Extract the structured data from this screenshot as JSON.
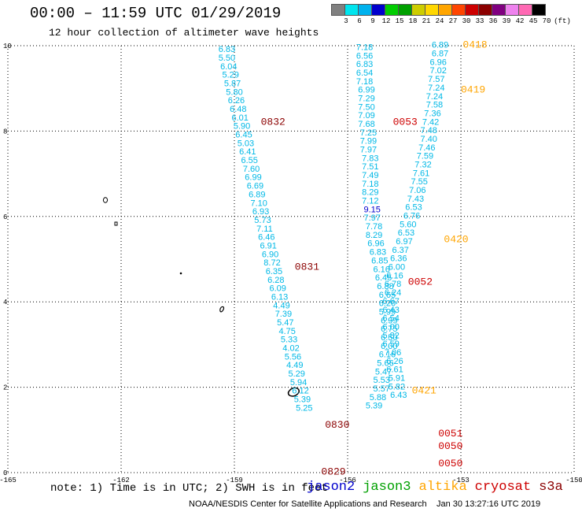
{
  "title": "00:00 – 11:59 UTC 01/29/2019",
  "subtitle": "12 hour collection of altimeter wave heights",
  "legend": {
    "unit_label": "(ft)",
    "colors": [
      "#808080",
      "#00e5ee",
      "#00b2ee",
      "#0000cd",
      "#00cd00",
      "#00a000",
      "#cdcd00",
      "#ffd700",
      "#ffa500",
      "#ff4500",
      "#cd0000",
      "#8b0000",
      "#800080",
      "#ee82ee",
      "#ff69b4",
      "#000000"
    ],
    "ticks": [
      "3",
      "6",
      "9",
      "12",
      "15",
      "18",
      "21",
      "24",
      "27",
      "30",
      "33",
      "36",
      "39",
      "42",
      "45",
      "70"
    ]
  },
  "axes": {
    "x": {
      "min": -165,
      "max": -150,
      "tick_labels": [
        "-165",
        "-162",
        "-159",
        "-156",
        "-153",
        "-150"
      ],
      "tick_values": [
        -165,
        -162,
        -159,
        -156,
        -153,
        -150
      ]
    },
    "y": {
      "min": 0,
      "max": 10,
      "tick_labels": [
        "0",
        "2",
        "4",
        "6",
        "8",
        "10"
      ],
      "tick_values": [
        0,
        2,
        4,
        6,
        8,
        10
      ]
    }
  },
  "passes": [
    {
      "label": "0832",
      "color": "#8b0000",
      "lon": -158.3,
      "lat": 8.15
    },
    {
      "label": "0831",
      "color": "#8b0000",
      "lon": -157.4,
      "lat": 4.75
    },
    {
      "label": "0830",
      "color": "#8b0000",
      "lon": -156.6,
      "lat": 1.05
    },
    {
      "label": "0829",
      "color": "#8b0000",
      "lon": -156.7,
      "lat": -0.05
    },
    {
      "label": "0053",
      "color": "#cd0000",
      "lon": -154.8,
      "lat": 8.15
    },
    {
      "label": "0052",
      "color": "#cd0000",
      "lon": -154.4,
      "lat": 4.4
    },
    {
      "label": "0051",
      "color": "#cd0000",
      "lon": -153.6,
      "lat": 0.85
    },
    {
      "label": "0050",
      "color": "#cd0000",
      "lon": -153.6,
      "lat": 0.55
    },
    {
      "label": "0050",
      "color": "#cd0000",
      "lon": -153.6,
      "lat": 0.15
    },
    {
      "label": "0418",
      "color": "#ffa500",
      "lon": -152.95,
      "lat": 9.95
    },
    {
      "label": "0419",
      "color": "#ffa500",
      "lon": -153.0,
      "lat": 8.9
    },
    {
      "label": "0420",
      "color": "#ffa500",
      "lon": -153.45,
      "lat": 5.4
    },
    {
      "label": "0421",
      "color": "#ffa500",
      "lon": -154.3,
      "lat": 1.85
    }
  ],
  "tracks": [
    {
      "name": "track-west",
      "color": "#00b8e6",
      "points": [
        {
          "lon": -159.2,
          "lat": 9.85,
          "v": "6.83"
        },
        {
          "lon": -159.2,
          "lat": 9.65,
          "v": "5.50"
        },
        {
          "lon": -159.15,
          "lat": 9.45,
          "v": "6.04"
        },
        {
          "lon": -159.1,
          "lat": 9.25,
          "v": "5.29"
        },
        {
          "lon": -159.05,
          "lat": 9.05,
          "v": "5.87"
        },
        {
          "lon": -159.0,
          "lat": 8.85,
          "v": "5.80"
        },
        {
          "lon": -158.95,
          "lat": 8.65,
          "v": "6.26"
        },
        {
          "lon": -158.9,
          "lat": 8.45,
          "v": "6.48"
        },
        {
          "lon": -158.85,
          "lat": 8.25,
          "v": "6.01"
        },
        {
          "lon": -158.8,
          "lat": 8.05,
          "v": "5.90"
        },
        {
          "lon": -158.75,
          "lat": 7.85,
          "v": "6.45"
        },
        {
          "lon": -158.7,
          "lat": 7.65,
          "v": "5.03"
        },
        {
          "lon": -158.65,
          "lat": 7.45,
          "v": "6.41"
        },
        {
          "lon": -158.6,
          "lat": 7.25,
          "v": "6.55"
        },
        {
          "lon": -158.55,
          "lat": 7.05,
          "v": "7.60"
        },
        {
          "lon": -158.5,
          "lat": 6.85,
          "v": "6.99"
        },
        {
          "lon": -158.45,
          "lat": 6.65,
          "v": "6.69"
        },
        {
          "lon": -158.4,
          "lat": 6.45,
          "v": "6.89"
        },
        {
          "lon": -158.35,
          "lat": 6.25,
          "v": "7.10"
        },
        {
          "lon": -158.3,
          "lat": 6.05,
          "v": "6.93"
        },
        {
          "lon": -158.25,
          "lat": 5.85,
          "v": "5.73"
        },
        {
          "lon": -158.2,
          "lat": 5.65,
          "v": "7.11"
        },
        {
          "lon": -158.15,
          "lat": 5.45,
          "v": "6.46"
        },
        {
          "lon": -158.1,
          "lat": 5.25,
          "v": "6.91"
        },
        {
          "lon": -158.05,
          "lat": 5.05,
          "v": "6.90"
        },
        {
          "lon": -158.0,
          "lat": 4.85,
          "v": "8.72"
        },
        {
          "lon": -157.95,
          "lat": 4.65,
          "v": "6.35"
        },
        {
          "lon": -157.9,
          "lat": 4.45,
          "v": "6.28"
        },
        {
          "lon": -157.85,
          "lat": 4.25,
          "v": "6.09"
        },
        {
          "lon": -157.8,
          "lat": 4.05,
          "v": "6.13"
        },
        {
          "lon": -157.75,
          "lat": 3.85,
          "v": "4.49"
        },
        {
          "lon": -157.7,
          "lat": 3.65,
          "v": "7.39"
        },
        {
          "lon": -157.65,
          "lat": 3.45,
          "v": "5.47"
        },
        {
          "lon": -157.6,
          "lat": 3.25,
          "v": "4.75"
        },
        {
          "lon": -157.55,
          "lat": 3.05,
          "v": "5.33"
        },
        {
          "lon": -157.5,
          "lat": 2.85,
          "v": "4.02"
        },
        {
          "lon": -157.45,
          "lat": 2.65,
          "v": "5.56"
        },
        {
          "lon": -157.4,
          "lat": 2.45,
          "v": "4.49"
        },
        {
          "lon": -157.35,
          "lat": 2.25,
          "v": "5.29"
        },
        {
          "lon": -157.3,
          "lat": 2.05,
          "v": "5.94"
        },
        {
          "lon": -157.25,
          "lat": 1.85,
          "v": "6.12"
        },
        {
          "lon": -157.2,
          "lat": 1.65,
          "v": "5.39"
        },
        {
          "lon": -157.15,
          "lat": 1.45,
          "v": "5.25"
        }
      ]
    },
    {
      "name": "track-middle",
      "color": "#00b8e6",
      "points": [
        {
          "lon": -155.55,
          "lat": 9.9,
          "v": "7.18"
        },
        {
          "lon": -155.55,
          "lat": 9.7,
          "v": "6.56"
        },
        {
          "lon": -155.55,
          "lat": 9.5,
          "v": "6.83"
        },
        {
          "lon": -155.55,
          "lat": 9.3,
          "v": "6.54"
        },
        {
          "lon": -155.55,
          "lat": 9.1,
          "v": "7.18"
        },
        {
          "lon": -155.5,
          "lat": 8.9,
          "v": "6.99"
        },
        {
          "lon": -155.5,
          "lat": 8.7,
          "v": "7.29"
        },
        {
          "lon": -155.5,
          "lat": 8.5,
          "v": "7.50"
        },
        {
          "lon": -155.5,
          "lat": 8.3,
          "v": "7.09"
        },
        {
          "lon": -155.5,
          "lat": 8.1,
          "v": "7.68"
        },
        {
          "lon": -155.45,
          "lat": 7.9,
          "v": "7.25"
        },
        {
          "lon": -155.45,
          "lat": 7.7,
          "v": "7.99"
        },
        {
          "lon": -155.45,
          "lat": 7.5,
          "v": "7.97"
        },
        {
          "lon": -155.4,
          "lat": 7.3,
          "v": "7.83"
        },
        {
          "lon": -155.4,
          "lat": 7.1,
          "v": "7.51"
        },
        {
          "lon": -155.4,
          "lat": 6.9,
          "v": "7.49"
        },
        {
          "lon": -155.4,
          "lat": 6.7,
          "v": "7.18"
        },
        {
          "lon": -155.4,
          "lat": 6.5,
          "v": "8.29"
        },
        {
          "lon": -155.4,
          "lat": 6.3,
          "v": "7.12"
        },
        {
          "lon": -155.35,
          "lat": 6.1,
          "v": "9.15",
          "color": "#0000cd"
        },
        {
          "lon": -155.35,
          "lat": 5.9,
          "v": "7.97"
        },
        {
          "lon": -155.3,
          "lat": 5.7,
          "v": "7.78"
        },
        {
          "lon": -155.3,
          "lat": 5.5,
          "v": "8.29"
        },
        {
          "lon": -155.25,
          "lat": 5.3,
          "v": "6.96"
        },
        {
          "lon": -155.2,
          "lat": 5.1,
          "v": "6.83"
        },
        {
          "lon": -155.15,
          "lat": 4.9,
          "v": "6.85"
        },
        {
          "lon": -155.1,
          "lat": 4.7,
          "v": "6.16"
        },
        {
          "lon": -155.05,
          "lat": 4.5,
          "v": "6.45"
        },
        {
          "lon": -155.0,
          "lat": 4.3,
          "v": "6.88"
        },
        {
          "lon": -154.95,
          "lat": 4.1,
          "v": "6.65"
        },
        {
          "lon": -154.95,
          "lat": 3.9,
          "v": "6.20"
        },
        {
          "lon": -154.95,
          "lat": 3.7,
          "v": "5.99"
        },
        {
          "lon": -154.9,
          "lat": 3.5,
          "v": "6.99"
        },
        {
          "lon": -154.9,
          "lat": 3.3,
          "v": "6.75"
        },
        {
          "lon": -154.9,
          "lat": 3.1,
          "v": "6.50"
        },
        {
          "lon": -154.9,
          "lat": 2.9,
          "v": "6.00"
        },
        {
          "lon": -154.95,
          "lat": 2.7,
          "v": "6.16"
        },
        {
          "lon": -155.0,
          "lat": 2.5,
          "v": "5.66"
        },
        {
          "lon": -155.05,
          "lat": 2.3,
          "v": "5.47"
        },
        {
          "lon": -155.1,
          "lat": 2.1,
          "v": "5.53"
        },
        {
          "lon": -155.1,
          "lat": 1.9,
          "v": "5.57"
        },
        {
          "lon": -155.2,
          "lat": 1.7,
          "v": "5.88"
        },
        {
          "lon": -155.3,
          "lat": 1.5,
          "v": "5.39"
        }
      ]
    },
    {
      "name": "track-east",
      "color": "#00b8e6",
      "points": [
        {
          "lon": -153.55,
          "lat": 9.95,
          "v": "6.89"
        },
        {
          "lon": -153.55,
          "lat": 9.75,
          "v": "6.87"
        },
        {
          "lon": -153.6,
          "lat": 9.55,
          "v": "6.96"
        },
        {
          "lon": -153.6,
          "lat": 9.35,
          "v": "7.02"
        },
        {
          "lon": -153.65,
          "lat": 9.15,
          "v": "7.57"
        },
        {
          "lon": -153.65,
          "lat": 8.95,
          "v": "7.24"
        },
        {
          "lon": -153.7,
          "lat": 8.75,
          "v": "7.24"
        },
        {
          "lon": -153.7,
          "lat": 8.55,
          "v": "7.58"
        },
        {
          "lon": -153.75,
          "lat": 8.35,
          "v": "7.36"
        },
        {
          "lon": -153.8,
          "lat": 8.15,
          "v": "7.42"
        },
        {
          "lon": -153.85,
          "lat": 7.95,
          "v": "7.48"
        },
        {
          "lon": -153.85,
          "lat": 7.75,
          "v": "7.40"
        },
        {
          "lon": -153.9,
          "lat": 7.55,
          "v": "7.46"
        },
        {
          "lon": -153.95,
          "lat": 7.35,
          "v": "7.59"
        },
        {
          "lon": -154.0,
          "lat": 7.15,
          "v": "7.32"
        },
        {
          "lon": -154.05,
          "lat": 6.95,
          "v": "7.61"
        },
        {
          "lon": -154.1,
          "lat": 6.75,
          "v": "7.55"
        },
        {
          "lon": -154.15,
          "lat": 6.55,
          "v": "7.06"
        },
        {
          "lon": -154.2,
          "lat": 6.35,
          "v": "7.43"
        },
        {
          "lon": -154.25,
          "lat": 6.15,
          "v": "6.53"
        },
        {
          "lon": -154.3,
          "lat": 5.95,
          "v": "6.76"
        },
        {
          "lon": -154.4,
          "lat": 5.75,
          "v": "5.60"
        },
        {
          "lon": -154.45,
          "lat": 5.55,
          "v": "6.53"
        },
        {
          "lon": -154.5,
          "lat": 5.35,
          "v": "6.97"
        },
        {
          "lon": -154.6,
          "lat": 5.15,
          "v": "6.37"
        },
        {
          "lon": -154.65,
          "lat": 4.95,
          "v": "6.36"
        },
        {
          "lon": -154.7,
          "lat": 4.75,
          "v": "6.00"
        },
        {
          "lon": -154.75,
          "lat": 4.55,
          "v": "6.16"
        },
        {
          "lon": -154.8,
          "lat": 4.35,
          "v": "6.78"
        },
        {
          "lon": -154.8,
          "lat": 4.15,
          "v": "6.24"
        },
        {
          "lon": -154.85,
          "lat": 3.95,
          "v": "6.67"
        },
        {
          "lon": -154.85,
          "lat": 3.75,
          "v": "6.43"
        },
        {
          "lon": -154.85,
          "lat": 3.55,
          "v": "6.54"
        },
        {
          "lon": -154.85,
          "lat": 3.35,
          "v": "6.00"
        },
        {
          "lon": -154.85,
          "lat": 3.15,
          "v": "5.82"
        },
        {
          "lon": -154.85,
          "lat": 2.95,
          "v": "6.59"
        },
        {
          "lon": -154.8,
          "lat": 2.75,
          "v": "7.06"
        },
        {
          "lon": -154.75,
          "lat": 2.55,
          "v": "6.26"
        },
        {
          "lon": -154.75,
          "lat": 2.35,
          "v": "6.61"
        },
        {
          "lon": -154.7,
          "lat": 2.15,
          "v": "5.91"
        },
        {
          "lon": -154.7,
          "lat": 1.95,
          "v": "5.82"
        },
        {
          "lon": -154.65,
          "lat": 1.75,
          "v": "6.43"
        }
      ]
    }
  ],
  "note": "note: 1) Time is in UTC; 2) SWH is in feet",
  "satellites": [
    {
      "name": "jason2",
      "color": "#0000cd"
    },
    {
      "name": "jason3",
      "color": "#00a000"
    },
    {
      "name": "altika",
      "color": "#ffa500"
    },
    {
      "name": "cryosat",
      "color": "#cd0000"
    },
    {
      "name": "s3a",
      "color": "#8b0000"
    }
  ],
  "footer": "NOAA/NESDIS Center for Satellite Applications and Research",
  "footer_date": "Jan 30 13:27:16 UTC 2019"
}
